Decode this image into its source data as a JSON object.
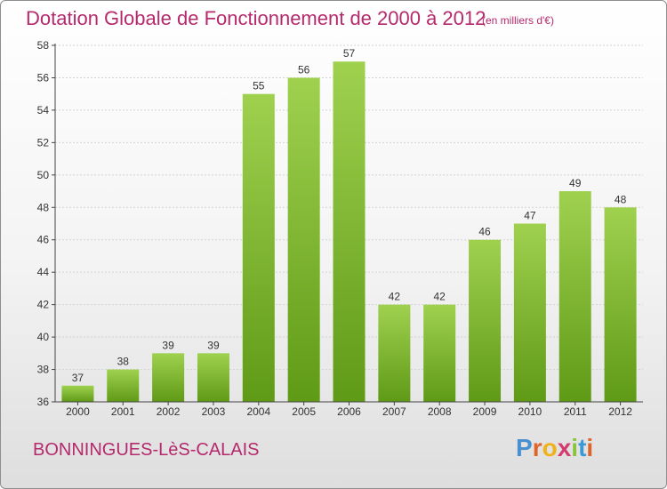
{
  "page": {
    "title": "Dotation Globale de Fonctionnement de 2000 à 2012",
    "subtitle": "(en milliers d'€)",
    "commune": "BONNINGUES-LèS-CALAIS",
    "logo": {
      "text": "Proxiti",
      "letter_colors": [
        "#4a8fd0",
        "#e0632a",
        "#f0b21a",
        "#d43b6e",
        "#8ac43f",
        "#3a9ad6",
        "#e0632a"
      ]
    }
  },
  "colors": {
    "title": "#b5296d",
    "bar_light": "#9fd14f",
    "bar_dark": "#5f9a16",
    "grid": "#d4d4d4",
    "axis": "#444444"
  },
  "chart_data": {
    "type": "bar",
    "title": "Dotation Globale de Fonctionnement de 2000 à 2012",
    "subtitle": "(en milliers d'€)",
    "categories": [
      "2000",
      "2001",
      "2002",
      "2003",
      "2004",
      "2005",
      "2006",
      "2007",
      "2008",
      "2009",
      "2010",
      "2011",
      "2012"
    ],
    "values": [
      37,
      38,
      39,
      39,
      55,
      56,
      57,
      42,
      42,
      46,
      47,
      49,
      48
    ],
    "ylim": [
      36,
      58
    ],
    "yticks": [
      36,
      38,
      40,
      42,
      44,
      46,
      48,
      50,
      52,
      54,
      56,
      58
    ],
    "grid": true,
    "legend": "none"
  }
}
